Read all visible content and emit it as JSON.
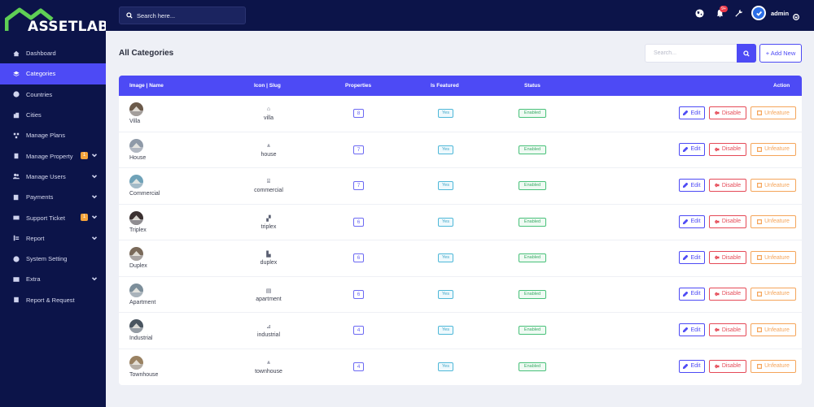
{
  "brand": {
    "logo_text": "ASSETLAB",
    "accent": "#4d4af5",
    "sidebar_bg": "#0c1449"
  },
  "topbar": {
    "search_placeholder": "Search here...",
    "notification_count": "9+",
    "user_name": "admin"
  },
  "sidebar": {
    "items": [
      {
        "label": "Dashboard",
        "icon": "home-icon"
      },
      {
        "label": "Categories",
        "icon": "layers-icon",
        "active": true
      },
      {
        "label": "Countries",
        "icon": "globe-icon"
      },
      {
        "label": "Cities",
        "icon": "city-icon"
      },
      {
        "label": "Manage Plans",
        "icon": "plans-icon"
      },
      {
        "label": "Manage Property",
        "icon": "building-icon",
        "badge": "1",
        "expandable": true
      },
      {
        "label": "Manage Users",
        "icon": "users-icon",
        "expandable": true
      },
      {
        "label": "Payments",
        "icon": "payments-icon",
        "expandable": true
      },
      {
        "label": "Support Ticket",
        "icon": "ticket-icon",
        "badge": "1",
        "expandable": true
      },
      {
        "label": "Report",
        "icon": "report-icon",
        "expandable": true
      },
      {
        "label": "System Setting",
        "icon": "settings-icon"
      },
      {
        "label": "Extra",
        "icon": "extra-icon",
        "expandable": true
      },
      {
        "label": "Report & Request",
        "icon": "request-icon"
      }
    ]
  },
  "main": {
    "title": "All Categories",
    "search_placeholder": "Search...",
    "add_new_label": "+ Add New",
    "table": {
      "headers": [
        "Image | Name",
        "Icon | Slug",
        "Properties",
        "Is Featured",
        "Status",
        "Action"
      ],
      "actions": {
        "edit": "Edit",
        "disable": "Disable",
        "unfeature": "Unfeature"
      },
      "rows": [
        {
          "name": "Villa",
          "slug": "villa",
          "icon_glyph": "⌂",
          "properties": "8",
          "featured": "Yes",
          "status": "Enabled",
          "thumb": "#6b5a4a"
        },
        {
          "name": "House",
          "slug": "house",
          "icon_glyph": "⩓",
          "properties": "7",
          "featured": "Yes",
          "status": "Enabled",
          "thumb": "#8f9aa8"
        },
        {
          "name": "Commercial",
          "slug": "commercial",
          "icon_glyph": "⌸",
          "properties": "7",
          "featured": "Yes",
          "status": "Enabled",
          "thumb": "#6fa2b8"
        },
        {
          "name": "Triplex",
          "slug": "triplex",
          "icon_glyph": "▞",
          "properties": "6",
          "featured": "Yes",
          "status": "Enabled",
          "thumb": "#3a3030"
        },
        {
          "name": "Duplex",
          "slug": "duplex",
          "icon_glyph": "▙",
          "properties": "6",
          "featured": "Yes",
          "status": "Enabled",
          "thumb": "#7a6a5a"
        },
        {
          "name": "Apartment",
          "slug": "apartment",
          "icon_glyph": "▤",
          "properties": "6",
          "featured": "Yes",
          "status": "Enabled",
          "thumb": "#7c8e9a"
        },
        {
          "name": "Industrial",
          "slug": "industrial",
          "icon_glyph": "⊿",
          "properties": "4",
          "featured": "Yes",
          "status": "Enabled",
          "thumb": "#4a5560"
        },
        {
          "name": "Townhouse",
          "slug": "townhouse",
          "icon_glyph": "⩓",
          "properties": "4",
          "featured": "Yes",
          "status": "Enabled",
          "thumb": "#9a8262"
        }
      ]
    }
  }
}
